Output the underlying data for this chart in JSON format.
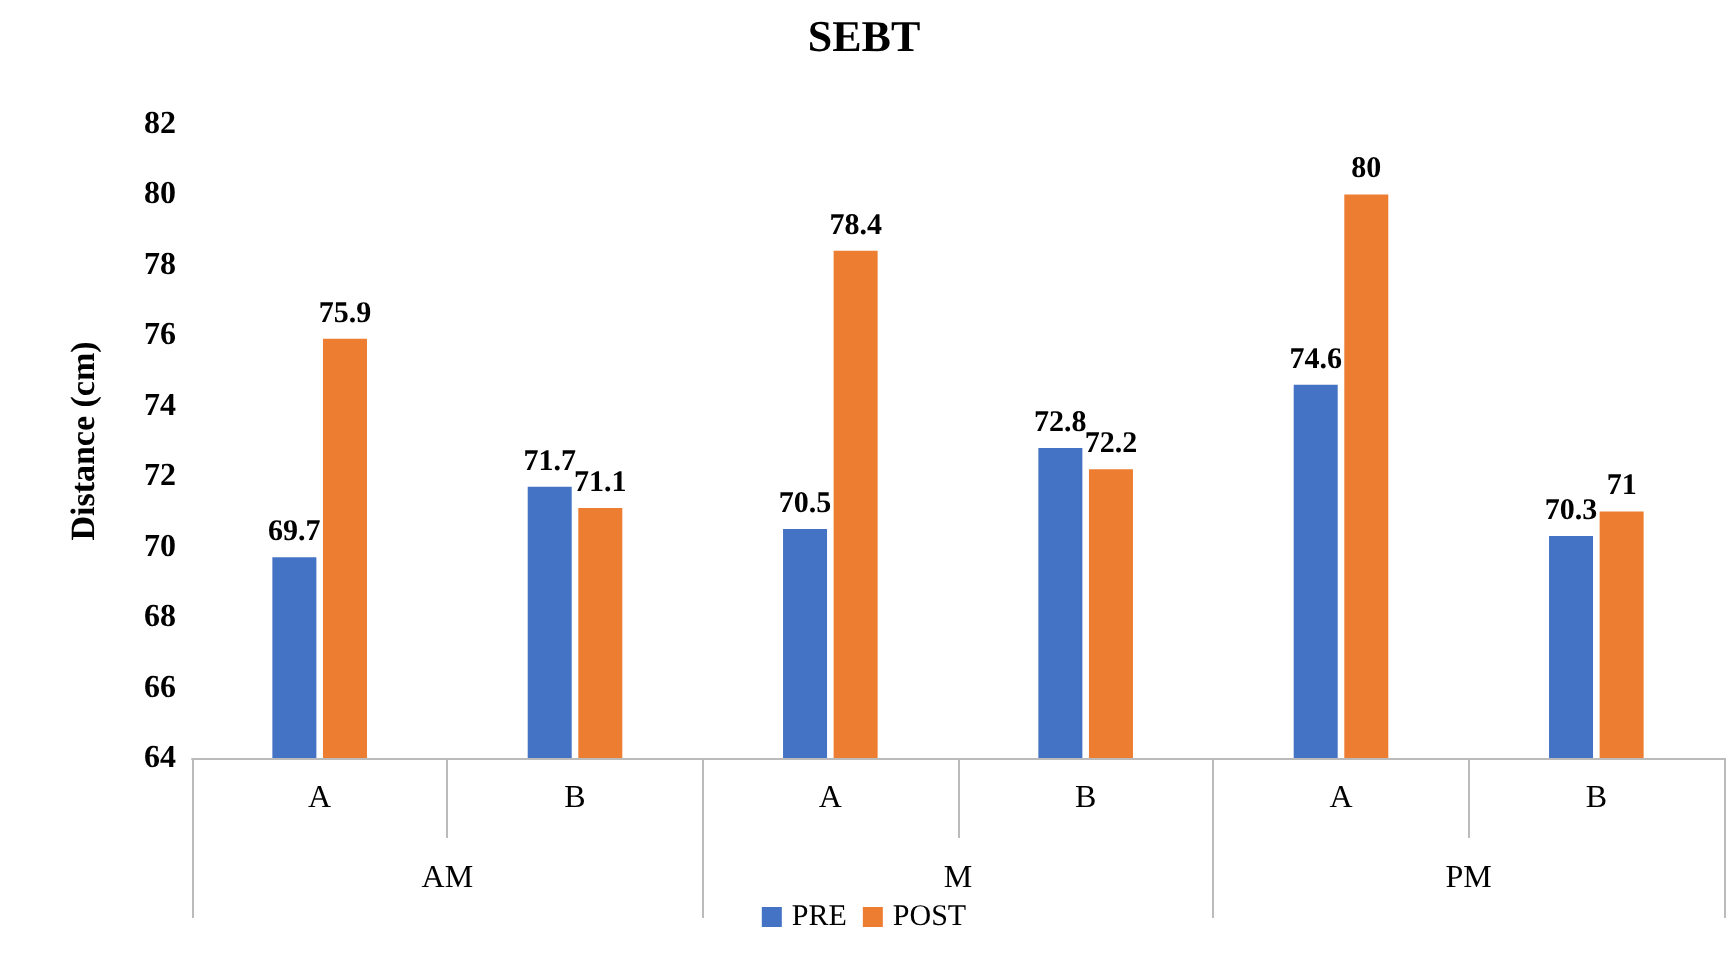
{
  "chart_data": {
    "type": "bar",
    "title": "SEBT",
    "ylabel": "Distance (cm)",
    "categories": [
      "A",
      "B",
      "A",
      "B",
      "A",
      "B"
    ],
    "annotations": [
      "AM",
      "M",
      "PM"
    ],
    "series": [
      {
        "name": "PRE",
        "color": "#4472c4",
        "values": [
          69.7,
          71.7,
          70.5,
          72.8,
          74.6,
          70.3
        ]
      },
      {
        "name": "POST",
        "color": "#ed7d31",
        "values": [
          75.9,
          71.1,
          78.4,
          72.2,
          80,
          71
        ]
      }
    ],
    "ylim": [
      64,
      82
    ],
    "yticks": [
      64,
      66,
      68,
      70,
      72,
      74,
      76,
      78,
      80,
      82
    ],
    "grid": false,
    "legend": "bottom",
    "data_labels": true
  }
}
